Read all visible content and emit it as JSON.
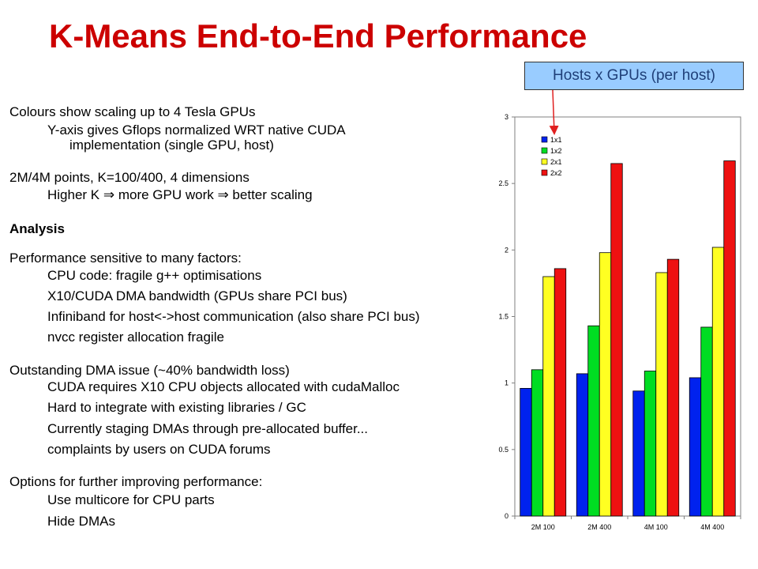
{
  "slide": {
    "title": "K-Means End-to-End Performance",
    "callout": "Hosts x GPUs (per host)",
    "colors": {
      "title": "#cc0000",
      "callout_bg": "#99ccff",
      "callout_text": "#1f3f78",
      "arrow": "#e02020"
    }
  },
  "text": {
    "l01": "Colours show scaling up to 4 Tesla GPUs",
    "l02": "Y-axis gives Gflops normalized WRT native CUDA",
    "l03": "implementation (single GPU, host)",
    "l04": "2M/4M points, K=100/400, 4 dimensions",
    "l05": "Higher K ⇒ more GPU work ⇒ better scaling",
    "l06": "Analysis",
    "l07": "Performance sensitive to many factors:",
    "l08": "CPU code: fragile g++ optimisations",
    "l09": "X10/CUDA DMA bandwidth (GPUs share PCI bus)",
    "l10": "Infiniband for host<->host communication (also share PCI bus)",
    "l11": "nvcc register allocation fragile",
    "l12": "Outstanding DMA issue (~40% bandwidth loss)",
    "l13": "CUDA requires X10 CPU objects allocated with cudaMalloc",
    "l14": "Hard to integrate with existing libraries / GC",
    "l15": "Currently staging DMAs through pre-allocated buffer...",
    "l16": "complaints by users on CUDA forums",
    "l17": "Options for further improving performance:",
    "l18": "Use multicore for CPU parts",
    "l19": "Hide DMAs"
  },
  "chart_data": {
    "type": "bar",
    "categories": [
      "2M 100",
      "2M 400",
      "4M 100",
      "4M 400"
    ],
    "series": [
      {
        "name": "1x1",
        "color": "#0022ee",
        "values": [
          0.96,
          1.07,
          0.94,
          1.04
        ]
      },
      {
        "name": "1x2",
        "color": "#00dd22",
        "values": [
          1.1,
          1.43,
          1.09,
          1.42
        ]
      },
      {
        "name": "2x1",
        "color": "#ffff22",
        "values": [
          1.8,
          1.98,
          1.83,
          2.02
        ]
      },
      {
        "name": "2x2",
        "color": "#ee1111",
        "values": [
          1.86,
          2.65,
          1.93,
          2.67
        ]
      }
    ],
    "ylim": [
      0,
      3
    ],
    "yticks": [
      "0",
      "0.5",
      "1",
      "1.5",
      "2",
      "2.5",
      "3"
    ],
    "yticks_values": [
      0,
      0.5,
      1,
      1.5,
      2,
      2.5,
      3
    ],
    "grid": false,
    "legend": "top-left"
  }
}
